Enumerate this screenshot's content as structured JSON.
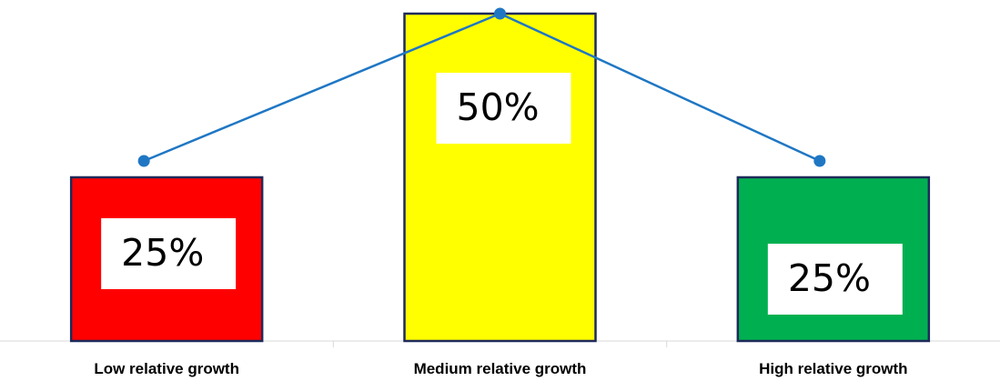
{
  "chart_data": {
    "type": "bar",
    "categories": [
      "Low relative growth",
      "Medium relative growth",
      "High relative growth"
    ],
    "values": [
      25,
      50,
      25
    ],
    "data_labels": [
      "25%",
      "50%",
      "25%"
    ],
    "bar_colors": [
      "#ff0000",
      "#ffff00",
      "#00b050"
    ],
    "bar_border_color": "#1f2a5a",
    "line_color": "#1f77c4",
    "ylim": [
      0,
      50
    ],
    "grid": false,
    "legend": "none",
    "overlay": {
      "type": "line",
      "markers": true,
      "points": [
        {
          "category": "Low relative growth",
          "value": 25
        },
        {
          "category": "Medium relative growth",
          "value": 50
        },
        {
          "category": "High relative growth",
          "value": 25
        }
      ]
    }
  }
}
